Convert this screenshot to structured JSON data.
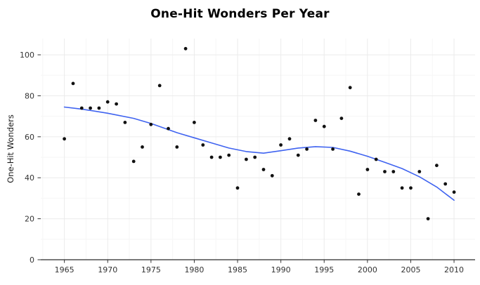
{
  "title": "One-Hit Wonders Per Year",
  "chart_data": {
    "type": "scatter",
    "title": "One-Hit Wonders Per Year",
    "xlabel": "",
    "ylabel": "One-Hit Wonders",
    "x_ticks": [
      1965,
      1970,
      1975,
      1980,
      1985,
      1990,
      1995,
      2000,
      2005,
      2010
    ],
    "y_ticks": [
      0,
      20,
      40,
      60,
      80,
      100
    ],
    "xlim": [
      1962.27,
      2012.43
    ],
    "ylim": [
      0,
      107.9
    ],
    "grid": "major+minor",
    "legend": "none",
    "points": {
      "x": [
        1965,
        1966,
        1967,
        1968,
        1969,
        1970,
        1971,
        1972,
        1973,
        1974,
        1975,
        1976,
        1977,
        1978,
        1979,
        1980,
        1981,
        1982,
        1983,
        1984,
        1985,
        1986,
        1987,
        1988,
        1989,
        1990,
        1991,
        1992,
        1993,
        1994,
        1995,
        1996,
        1997,
        1998,
        1999,
        2000,
        2001,
        2002,
        2003,
        2004,
        2005,
        2006,
        2007,
        2008,
        2009,
        2010
      ],
      "y": [
        59,
        86,
        74,
        74,
        74,
        77,
        76,
        67,
        48,
        55,
        66,
        85,
        64,
        55,
        103,
        67,
        56,
        50,
        50,
        51,
        35,
        49,
        50,
        44,
        41,
        56,
        59,
        51,
        54,
        68,
        65,
        54,
        69,
        84,
        32,
        44,
        49,
        43,
        43,
        35,
        35,
        43,
        20,
        46,
        37,
        33
      ]
    },
    "trend": {
      "name": "smoothed-trend",
      "x": [
        1965,
        1967,
        1970,
        1973,
        1975,
        1978,
        1980,
        1982,
        1984,
        1986,
        1988,
        1990,
        1992,
        1994,
        1996,
        1998,
        2000,
        2002,
        2004,
        2006,
        2008,
        2010
      ],
      "y": [
        74.5,
        73.5,
        71.5,
        69.0,
        66.5,
        62.0,
        59.5,
        57.0,
        54.5,
        52.8,
        52.0,
        53.2,
        54.5,
        55.2,
        54.8,
        53.0,
        50.5,
        47.5,
        44.5,
        40.5,
        35.5,
        29.0
      ]
    }
  },
  "colors": {
    "point": "#111111",
    "trend_line": "#3f63f0",
    "grid_major": "#ebebeb",
    "grid_minor": "#f6f6f6",
    "axis_line": "#2b2b2b",
    "tick": "#333333",
    "tick_label": "#333333",
    "panel_background": "#ffffff"
  }
}
